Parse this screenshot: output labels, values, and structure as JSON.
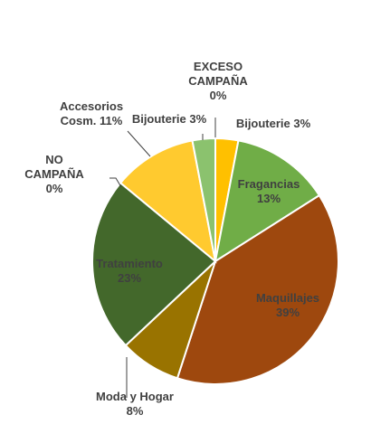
{
  "chart_data": {
    "type": "pie",
    "title": "",
    "slices": [
      {
        "label": "Bijouterie 3%",
        "value": 3,
        "color": "#FFC000"
      },
      {
        "label": "Fragancias 13%",
        "value": 13,
        "color": "#70AD47"
      },
      {
        "label": "Maquillajes 39%",
        "value": 39,
        "color": "#9E480E"
      },
      {
        "label": "Moda y Hogar 8%",
        "value": 8,
        "color": "#997300"
      },
      {
        "label": "Tratamiento 23%",
        "value": 23,
        "color": "#43682B"
      },
      {
        "label": "NO CAMPAÑA 0%",
        "value": 0,
        "color": "#264478"
      },
      {
        "label": "Accesorios Cosm. 11%",
        "value": 11,
        "color": "#FFCA2F"
      },
      {
        "label": "Bijouterie 3%",
        "value": 3,
        "color": "#8BC26E"
      },
      {
        "label": "EXCESO CAMPAÑA 0%",
        "value": 0,
        "color": "#7F7F7F"
      }
    ]
  }
}
